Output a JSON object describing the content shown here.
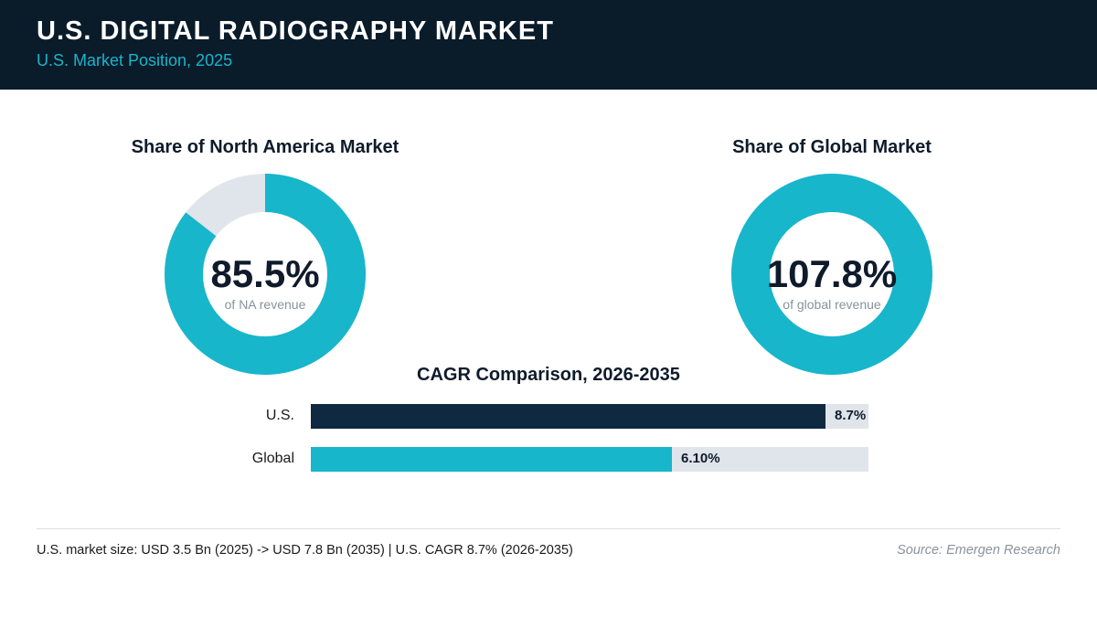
{
  "header": {
    "title": "U.S. DIGITAL RADIOGRAPHY MARKET",
    "subtitle": "U.S. Market Position, 2025"
  },
  "colors": {
    "header_bg": "#0a1b2a",
    "accent": "#17b6cb",
    "navy": "#0f2940",
    "track": "#e0e5eb"
  },
  "chart_data": [
    {
      "type": "pie",
      "title": "Share of North America Market",
      "value": 85.5,
      "display_value": "85.5%",
      "caption": "of NA revenue"
    },
    {
      "type": "pie",
      "title": "Share of Global Market",
      "value": 107.8,
      "display_value": "107.8%",
      "caption": "of global revenue"
    },
    {
      "type": "bar",
      "title": "CAGR Comparison, 2026-2035",
      "categories": [
        "U.S.",
        "Global"
      ],
      "values": [
        8.7,
        6.1
      ],
      "value_labels": [
        "8.7%",
        "6.10%"
      ],
      "xlim": [
        0,
        9.43
      ]
    }
  ],
  "footer": {
    "note": "U.S. market size: USD 3.5 Bn (2025) -> USD 7.8 Bn (2035)  |  U.S. CAGR 8.7% (2026-2035)",
    "source": "Source: Emergen Research"
  }
}
